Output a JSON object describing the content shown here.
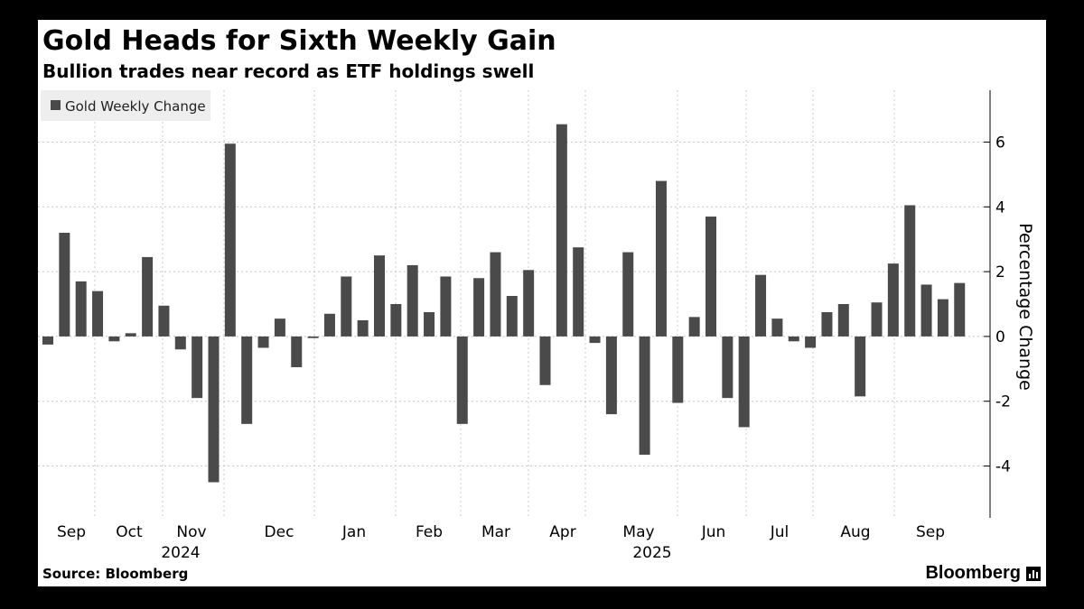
{
  "title": "Gold Heads for Sixth Weekly Gain",
  "subtitle": "Bullion trades near record as ETF holdings swell",
  "source": "Source: Bloomberg",
  "brand": "Bloomberg",
  "colors": {
    "bar": "#4a4a4a",
    "background": "#ffffff",
    "grid": "#c8c8c8",
    "text": "#000000",
    "legend_bg": "#eeeeee"
  },
  "chart_data": {
    "type": "bar",
    "legend": [
      "Gold Weekly Change"
    ],
    "legend_position": "top-left",
    "ylabel": "Percentage Change",
    "yaxis_side": "right",
    "ylim": [
      -5.6,
      7.6
    ],
    "yticks": [
      -4,
      -2,
      0,
      2,
      4,
      6
    ],
    "grid": true,
    "x_month_labels": [
      "Sep",
      "Oct",
      "Nov",
      "Dec",
      "Jan",
      "Feb",
      "Mar",
      "Apr",
      "May",
      "Jun",
      "Jul",
      "Aug",
      "Sep"
    ],
    "x_year_labels": [
      "2024",
      "2025"
    ],
    "series": [
      {
        "name": "Gold Weekly Change",
        "values": [
          -0.25,
          3.2,
          1.7,
          1.4,
          -0.15,
          0.1,
          2.45,
          0.95,
          -0.4,
          -1.9,
          -4.5,
          5.95,
          -2.7,
          -0.35,
          0.55,
          -0.95,
          -0.05,
          0.7,
          1.85,
          0.5,
          2.5,
          1.0,
          2.2,
          0.75,
          1.85,
          -2.7,
          1.8,
          2.6,
          1.25,
          2.05,
          -1.5,
          6.55,
          2.75,
          -0.2,
          -2.4,
          2.6,
          -3.65,
          4.8,
          -2.05,
          0.6,
          3.7,
          -1.9,
          -2.8,
          1.9,
          0.55,
          -0.15,
          -0.35,
          0.75,
          1.0,
          -1.85,
          1.05,
          2.25,
          4.05,
          1.6,
          1.15,
          1.65
        ]
      }
    ]
  }
}
